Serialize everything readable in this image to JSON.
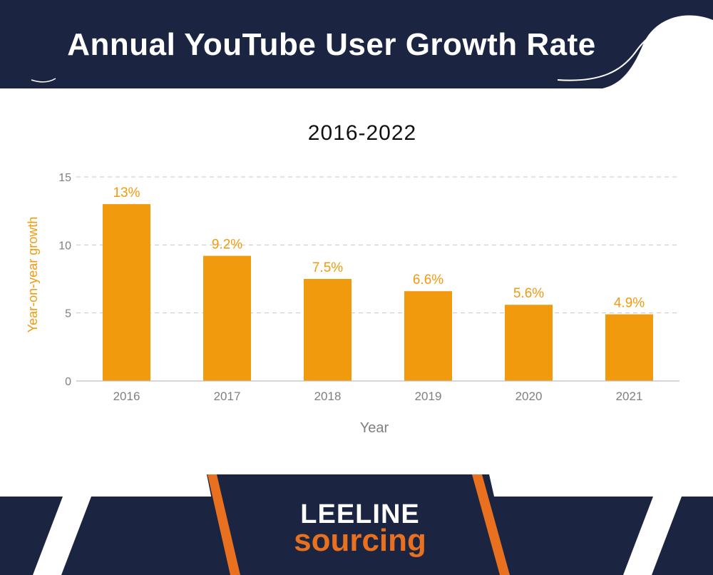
{
  "header": {
    "title": "Annual YouTube User Growth Rate"
  },
  "colors": {
    "navy": "#1b2542",
    "bar": "#f29a0e",
    "accent_orange": "#e8701f",
    "axis_text": "#7f7f7f",
    "grid": "#c8c8c8",
    "ylabel_color": "#f29a0e"
  },
  "chart_data": {
    "type": "bar",
    "title": "2016-2022",
    "xlabel": "Year",
    "ylabel": "Year-on-year growth",
    "categories": [
      "2016",
      "2017",
      "2018",
      "2019",
      "2020",
      "2021"
    ],
    "values": [
      13,
      9.2,
      7.5,
      6.6,
      5.6,
      4.9
    ],
    "data_labels": [
      "13%",
      "9.2%",
      "7.5%",
      "6.6%",
      "5.6%",
      "4.9%"
    ],
    "ylim": [
      0,
      15
    ],
    "yticks": [
      0,
      5,
      10,
      15
    ],
    "grid": true,
    "legend": "none"
  },
  "logo": {
    "line1": "LEELINE",
    "line2": "sourcing"
  }
}
